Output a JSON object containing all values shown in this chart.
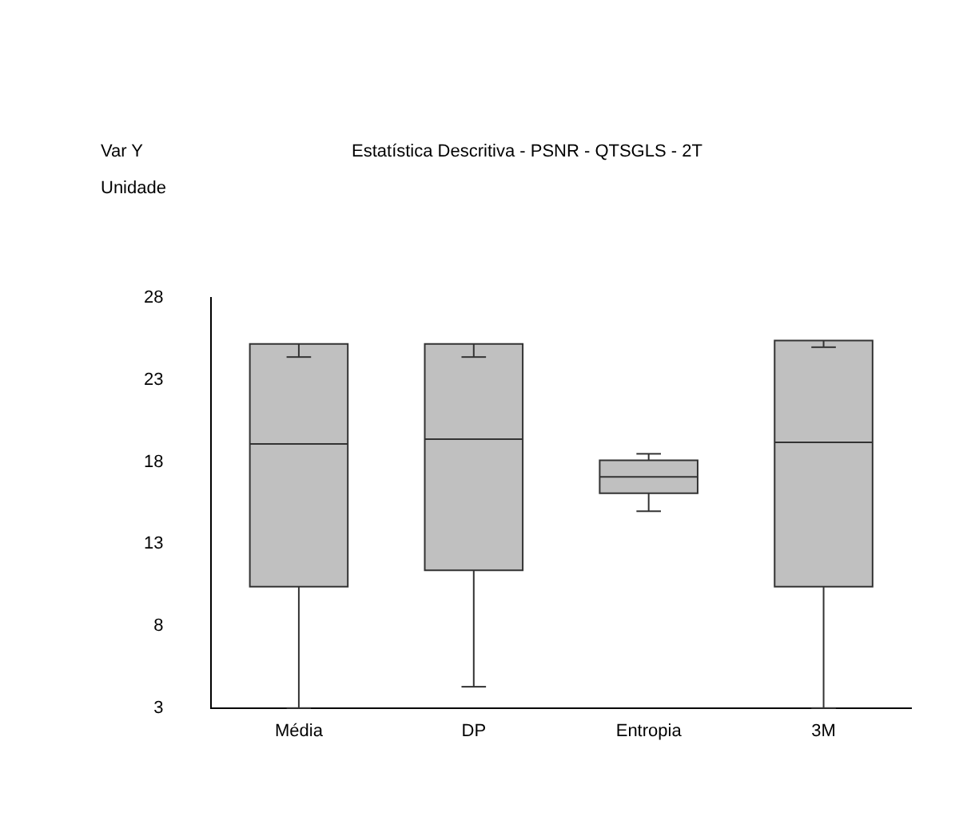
{
  "chart_data": {
    "type": "box",
    "title": "Estatística Descritiva - PSNR - QTSGLS - 2T",
    "annotations": [
      "Var Y",
      "Unidade"
    ],
    "categories": [
      "Média",
      "DP",
      "Entropia",
      "3M"
    ],
    "boxes": [
      {
        "low": 3,
        "q1": 10.4,
        "median": 19.1,
        "q3": 25.2,
        "high": 24.4
      },
      {
        "low": 4.3,
        "q1": 11.4,
        "median": 19.4,
        "q3": 25.2,
        "high": 24.4
      },
      {
        "low": 15,
        "q1": 16.1,
        "median": 17.1,
        "q3": 18.1,
        "high": 18.5
      },
      {
        "low": 3,
        "q1": 10.4,
        "median": 19.2,
        "q3": 25.4,
        "high": 25
      }
    ],
    "color": "#c0c0c0",
    "ylim": [
      3,
      28
    ],
    "yticks": [
      3,
      8,
      13,
      18,
      23,
      28
    ],
    "grid": false,
    "legend": false
  }
}
